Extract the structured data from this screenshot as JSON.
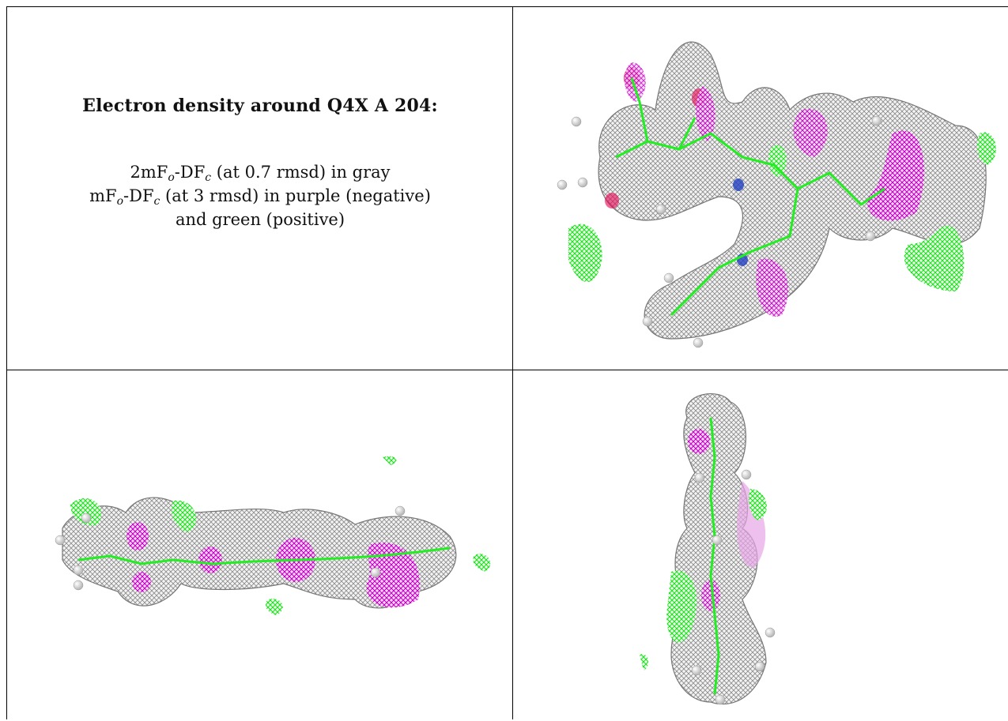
{
  "caption": {
    "title": "Electron density around Q4X A 204:",
    "line1_prefix": "2mF",
    "line1_sub1": "o",
    "line1_mid": "-DF",
    "line1_sub2": "c",
    "line1_suffix": " (at 0.7 rmsd) in gray",
    "line2_prefix": "mF",
    "line2_sub1": "o",
    "line2_mid": "-DF",
    "line2_sub2": "c",
    "line2_suffix": " (at 3 rmsd) in purple (negative)",
    "line3": "and green (positive)"
  },
  "colors": {
    "mesh_gray": "#8a8a8a",
    "positive_green": "#22ee22",
    "negative_purple": "#cc00cc",
    "border": "#000000"
  }
}
